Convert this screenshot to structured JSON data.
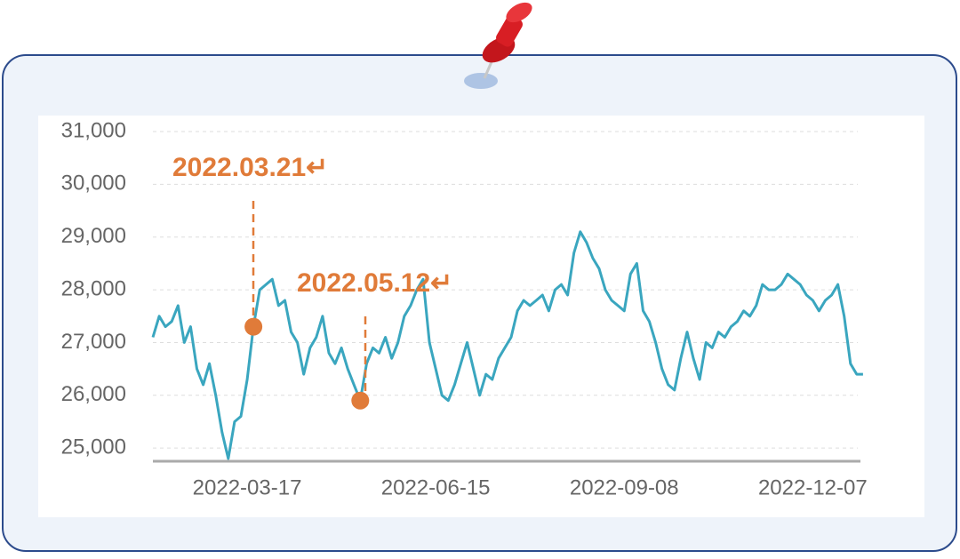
{
  "chart_data": {
    "type": "line",
    "categories": [
      null,
      null,
      null,
      null,
      null,
      null,
      null,
      null,
      null,
      null,
      null,
      null,
      null,
      null,
      null,
      "2022-03-17",
      null,
      null,
      null,
      null,
      null,
      null,
      null,
      null,
      null,
      null,
      null,
      null,
      null,
      null,
      null,
      null,
      null,
      null,
      null,
      null,
      null,
      null,
      null,
      null,
      null,
      null,
      null,
      null,
      null,
      "2022-06-15",
      null,
      null,
      null,
      null,
      null,
      null,
      null,
      null,
      null,
      null,
      null,
      null,
      null,
      null,
      null,
      null,
      null,
      null,
      null,
      null,
      null,
      null,
      null,
      null,
      null,
      null,
      null,
      null,
      null,
      "2022-09-08",
      null,
      null,
      null,
      null,
      null,
      null,
      null,
      null,
      null,
      null,
      null,
      null,
      null,
      null,
      null,
      null,
      null,
      null,
      null,
      null,
      null,
      null,
      null,
      null,
      null,
      null,
      null,
      null,
      null,
      "2022-12-07",
      null,
      null,
      null,
      null,
      null,
      null,
      null,
      null
    ],
    "series": [
      {
        "color": "#3aa6bf",
        "values": [
          27100,
          27500,
          27300,
          27400,
          27700,
          27000,
          27300,
          26500,
          26200,
          26600,
          26000,
          25300,
          24800,
          25500,
          25600,
          26300,
          27300,
          28000,
          28100,
          28200,
          27700,
          27800,
          27200,
          27000,
          26400,
          26900,
          27100,
          27500,
          26800,
          26600,
          26900,
          26500,
          26200,
          25900,
          26600,
          26900,
          26800,
          27100,
          26700,
          27000,
          27500,
          27700,
          28000,
          28200,
          27000,
          26500,
          26000,
          25900,
          26200,
          26600,
          27000,
          26500,
          26000,
          26400,
          26300,
          26700,
          26900,
          27100,
          27600,
          27800,
          27700,
          27800,
          27900,
          27600,
          28000,
          28100,
          27900,
          28700,
          29100,
          28900,
          28600,
          28400,
          28000,
          27800,
          27700,
          27600,
          28300,
          28500,
          27600,
          27400,
          27000,
          26500,
          26200,
          26100,
          26700,
          27200,
          26700,
          26300,
          27000,
          26900,
          27200,
          27100,
          27300,
          27400,
          27600,
          27500,
          27700,
          28100,
          28000,
          28000,
          28100,
          28300,
          28200,
          28100,
          27900,
          27800,
          27600,
          27800,
          27900,
          28100,
          27500,
          26600,
          26400,
          26400
        ]
      }
    ],
    "annotations": [
      {
        "text": "2022.03.21↵",
        "at": 16,
        "color": "#e07b39"
      },
      {
        "text": "2022.05.12↵",
        "at": 33,
        "color": "#e07b39"
      }
    ],
    "ylim": [
      24750,
      31000
    ],
    "yticks": [
      {
        "value": 25000,
        "label": "25,000"
      },
      {
        "value": 26000,
        "label": "26,000"
      },
      {
        "value": 27000,
        "label": "27,000"
      },
      {
        "value": 28000,
        "label": "28,000"
      },
      {
        "value": 29000,
        "label": "29,000"
      },
      {
        "value": 30000,
        "label": "30,000"
      },
      {
        "value": 31000,
        "label": "31,000"
      }
    ],
    "grid": true
  }
}
